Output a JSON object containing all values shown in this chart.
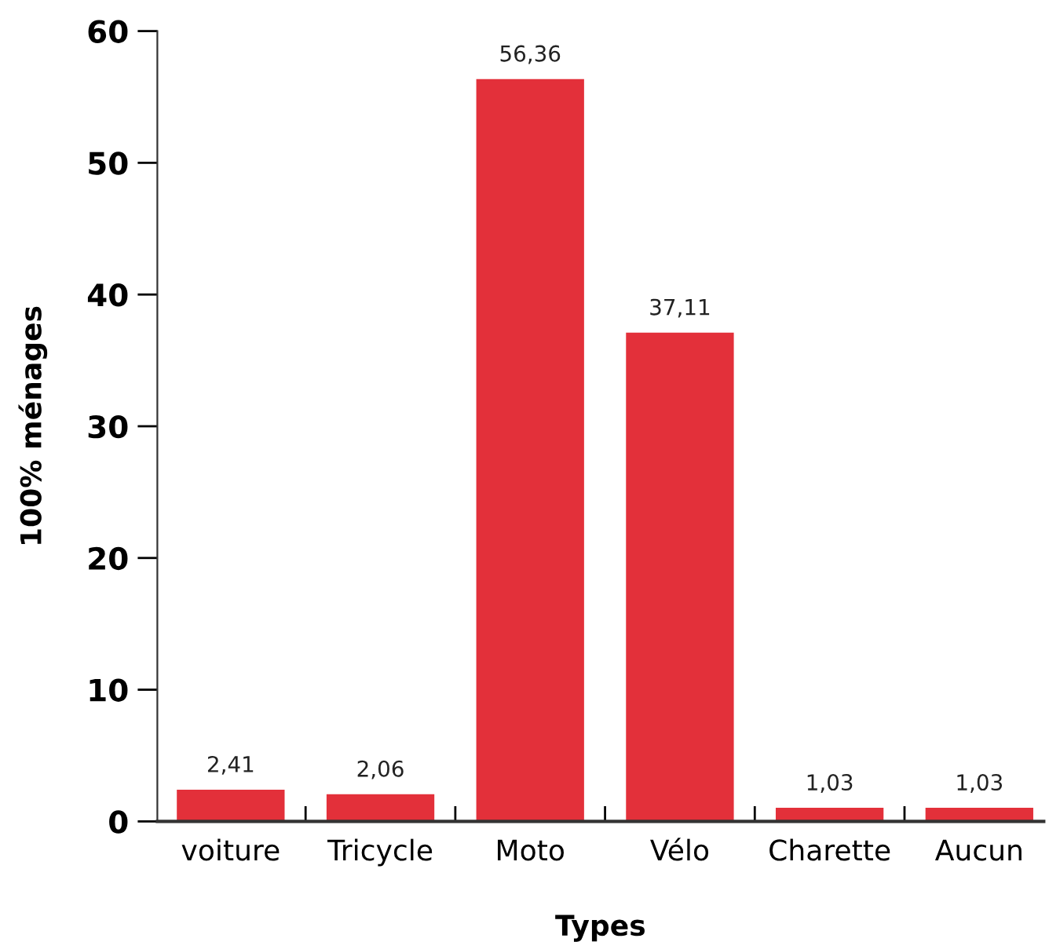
{
  "chart_data": {
    "type": "bar",
    "xlabel": "Types",
    "ylabel": "100% ménages",
    "categories": [
      "voiture",
      "Tricycle",
      "Moto",
      "Vélo",
      "Charette",
      "Aucun"
    ],
    "values": [
      2.41,
      2.06,
      56.36,
      37.11,
      1.03,
      1.03
    ],
    "value_labels": [
      "2,41",
      "2,06",
      "56,36",
      "37,11",
      "1,03",
      "1,03"
    ],
    "color": "#e3303a",
    "ylim": [
      0,
      60
    ],
    "yticks": [
      0,
      10,
      20,
      30,
      40,
      50,
      60
    ],
    "grid": false
  }
}
